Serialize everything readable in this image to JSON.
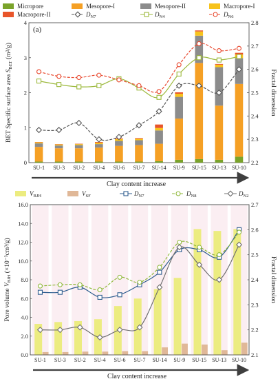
{
  "chart_data": [
    {
      "panel": "(a)",
      "type": "bar",
      "stacked": true,
      "categories": [
        "SU-1",
        "SU-3",
        "SU-2",
        "SU-4",
        "SU-6",
        "SU-7",
        "SU-14",
        "SU-9",
        "SU-15",
        "SU-13",
        "SU-10"
      ],
      "legend": [
        {
          "name": "Micropore",
          "kind": "bar",
          "color": "#7aa32a"
        },
        {
          "name": "Mesopore-I",
          "kind": "bar",
          "color": "#f5a025"
        },
        {
          "name": "Mesopore-II",
          "kind": "bar",
          "color": "#8c8c8c"
        },
        {
          "name": "Macropore-I",
          "kind": "bar",
          "color": "#f7c31c"
        },
        {
          "name": "Macropore-II",
          "kind": "bar",
          "color": "#e8552a"
        },
        {
          "name": "D",
          "sub": "N7",
          "kind": "line",
          "color": "#555555",
          "marker": "diamond",
          "dash": "4,2"
        },
        {
          "name": "D",
          "sub": "N4",
          "kind": "line",
          "color": "#9bb83a",
          "marker": "square",
          "dash": ""
        },
        {
          "name": "D",
          "sub": "N6",
          "kind": "line",
          "color": "#e8452a",
          "marker": "circle",
          "dash": "4,2"
        }
      ],
      "bar_series": [
        {
          "name": "Micropore",
          "color": "#7aa32a",
          "values": [
            0.03,
            0.03,
            0.03,
            0.03,
            0.03,
            0.03,
            0.04,
            0.08,
            0.1,
            0.08,
            0.17
          ]
        },
        {
          "name": "Mesopore-I",
          "color": "#f5a025",
          "values": [
            0.42,
            0.38,
            0.38,
            0.4,
            0.45,
            0.47,
            0.5,
            1.18,
            2.75,
            1.55,
            2.08
          ]
        },
        {
          "name": "Mesopore-II",
          "color": "#8c8c8c",
          "values": [
            0.1,
            0.08,
            0.09,
            0.1,
            0.14,
            0.14,
            0.38,
            0.62,
            0.78,
            1.1,
            0.74
          ]
        },
        {
          "name": "Macropore-I",
          "color": "#f7c31c",
          "values": [
            0.03,
            0.03,
            0.03,
            0.04,
            0.05,
            0.04,
            0.07,
            0.09,
            0.12,
            0.07,
            0.1
          ]
        },
        {
          "name": "Macropore-II",
          "color": "#e8552a",
          "values": [
            0.01,
            0.01,
            0.01,
            0.02,
            0.02,
            0.02,
            0.1,
            0.04,
            0.03,
            0.02,
            0.05
          ]
        }
      ],
      "line_series": [
        {
          "name": "DN7",
          "color": "#555555",
          "marker": "diamond",
          "dash": "4,2",
          "values": [
            2.34,
            2.34,
            2.37,
            2.3,
            2.31,
            2.36,
            2.42,
            2.53,
            2.53,
            2.5,
            2.6
          ]
        },
        {
          "name": "DN4",
          "color": "#9bb83a",
          "marker": "square",
          "dash": "",
          "values": [
            2.55,
            2.535,
            2.525,
            2.53,
            2.56,
            2.52,
            2.48,
            2.58,
            2.65,
            2.64,
            2.655
          ]
        },
        {
          "name": "DN6",
          "color": "#e8452a",
          "marker": "circle",
          "dash": "4,2",
          "values": [
            2.59,
            2.57,
            2.565,
            2.575,
            2.555,
            2.53,
            2.505,
            2.62,
            2.71,
            2.68,
            2.69
          ]
        }
      ],
      "ylabel": "BET Specific surface area S",
      "ylabel_sub": "BET",
      "ylabel_unit": " (m²/g)",
      "y2label": "Fractal dimension",
      "ylim": [
        0,
        4
      ],
      "yticks": [
        "0",
        "1",
        "2",
        "3",
        "4"
      ],
      "y2lim": [
        2.2,
        2.8
      ],
      "y2ticks": [
        "2.2",
        "2.3",
        "2.4",
        "2.5",
        "2.6",
        "2.7",
        "2.8"
      ],
      "xlabel": "Clay content increase"
    },
    {
      "panel": "(b)",
      "type": "bar",
      "stacked": false,
      "categories": [
        "SU-1",
        "SU-3",
        "SU-2",
        "SU-4",
        "SU-6",
        "SU-7",
        "SU-14",
        "SU-9",
        "SU-15",
        "SU-13",
        "SU-10"
      ],
      "legend": [
        {
          "name": "V",
          "sub": "BJH",
          "kind": "bar",
          "color": "#ecec80"
        },
        {
          "name": "V",
          "sub": "SF",
          "kind": "bar",
          "color": "#e0b898"
        },
        {
          "name": "D",
          "sub": "N7",
          "kind": "line",
          "color": "#2f5d8f",
          "marker": "square",
          "dash": ""
        },
        {
          "name": "D",
          "sub": "N8",
          "kind": "line",
          "color": "#8fb83a",
          "marker": "circle",
          "dash": "4,2"
        },
        {
          "name": "D",
          "sub": "N2",
          "kind": "line",
          "color": "#707070",
          "marker": "diamond",
          "dash": ""
        }
      ],
      "bar_series": [
        {
          "name": "VBJH",
          "color": "#ecec80",
          "values": [
            3.3,
            3.5,
            3.6,
            3.8,
            5.2,
            6.0,
            7.0,
            8.2,
            13.4,
            13.2,
            13.4
          ]
        },
        {
          "name": "VSF",
          "color": "#e0b898",
          "values": [
            0.3,
            0.3,
            0.35,
            0.35,
            0.4,
            0.4,
            0.8,
            1.2,
            1.1,
            0.5,
            1.3
          ]
        }
      ],
      "line_series": [
        {
          "name": "DN7",
          "color": "#2f5d8f",
          "marker": "square",
          "dash": "",
          "values": [
            2.35,
            2.35,
            2.37,
            2.33,
            2.34,
            2.38,
            2.43,
            2.52,
            2.52,
            2.49,
            2.6
          ]
        },
        {
          "name": "DN8",
          "color": "#8fb83a",
          "marker": "circle",
          "dash": "4,2",
          "values": [
            2.375,
            2.38,
            2.38,
            2.36,
            2.41,
            2.39,
            2.45,
            2.55,
            2.53,
            2.5,
            2.59
          ]
        },
        {
          "name": "DN2",
          "color": "#707070",
          "marker": "diamond",
          "dash": "",
          "values": [
            2.2,
            2.2,
            2.21,
            2.17,
            2.2,
            2.21,
            2.37,
            2.53,
            2.46,
            2.4,
            2.54
          ]
        }
      ],
      "ylabel": "Pore volume V",
      "ylabel_sub": "BJH",
      "ylabel_unit": " (×10⁻³cm³/g)",
      "y2label": "Fractal dimension",
      "ylim": [
        0,
        16
      ],
      "yticks": [
        "0.0",
        "2.0",
        "4.0",
        "6.0",
        "8.0",
        "10.0",
        "12.0",
        "14.0",
        "16.0"
      ],
      "y2lim": [
        2.1,
        2.7
      ],
      "y2ticks": [
        "2.1",
        "2.2",
        "2.3",
        "2.4",
        "2.5",
        "2.6",
        "2.7"
      ],
      "xlabel": "Clay content increase"
    }
  ]
}
